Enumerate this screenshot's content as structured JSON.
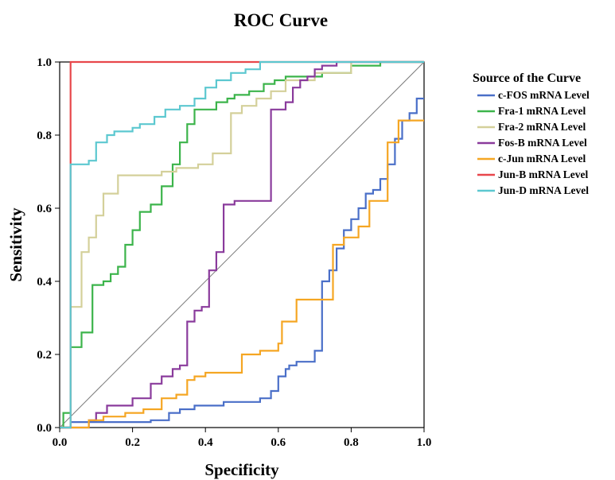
{
  "chart_data": {
    "type": "line",
    "title": "ROC Curve",
    "xlabel": "Specificity",
    "ylabel": "Sensitivity",
    "xlim": [
      0,
      1
    ],
    "ylim": [
      0,
      1
    ],
    "xticks": [
      "0.0",
      "0.2",
      "0.4",
      "0.6",
      "0.8",
      "1.0"
    ],
    "yticks": [
      "0.0",
      "0.2",
      "0.4",
      "0.6",
      "0.8",
      "1.0"
    ],
    "grid": false,
    "legend": {
      "title": "Source of the Curve",
      "position": "right"
    },
    "series": [
      {
        "name": "c-FOS mRNA Level",
        "color": "#4a6fc8",
        "x": [
          0,
          0.03,
          0.03,
          0.25,
          0.25,
          0.3,
          0.3,
          0.33,
          0.33,
          0.37,
          0.37,
          0.45,
          0.45,
          0.55,
          0.55,
          0.58,
          0.58,
          0.6,
          0.6,
          0.62,
          0.62,
          0.63,
          0.63,
          0.65,
          0.65,
          0.7,
          0.7,
          0.72,
          0.72,
          0.74,
          0.74,
          0.76,
          0.76,
          0.78,
          0.78,
          0.8,
          0.8,
          0.82,
          0.82,
          0.84,
          0.84,
          0.86,
          0.86,
          0.88,
          0.88,
          0.9,
          0.9,
          0.92,
          0.92,
          0.94,
          0.94,
          0.96,
          0.96,
          0.98,
          0.98,
          1.0
        ],
        "y": [
          0,
          0,
          0.015,
          0.015,
          0.02,
          0.02,
          0.04,
          0.04,
          0.05,
          0.05,
          0.06,
          0.06,
          0.07,
          0.07,
          0.08,
          0.08,
          0.1,
          0.1,
          0.14,
          0.14,
          0.16,
          0.16,
          0.17,
          0.17,
          0.18,
          0.18,
          0.21,
          0.21,
          0.4,
          0.4,
          0.43,
          0.43,
          0.49,
          0.49,
          0.54,
          0.54,
          0.57,
          0.57,
          0.6,
          0.6,
          0.64,
          0.64,
          0.65,
          0.65,
          0.68,
          0.68,
          0.72,
          0.72,
          0.79,
          0.79,
          0.84,
          0.84,
          0.86,
          0.86,
          0.9,
          0.9
        ]
      },
      {
        "name": "Fra-1 mRNA Level",
        "color": "#3cb44b",
        "x": [
          0,
          0.01,
          0.01,
          0.03,
          0.03,
          0.06,
          0.06,
          0.09,
          0.09,
          0.12,
          0.12,
          0.14,
          0.14,
          0.16,
          0.16,
          0.18,
          0.18,
          0.2,
          0.2,
          0.22,
          0.22,
          0.25,
          0.25,
          0.28,
          0.28,
          0.31,
          0.31,
          0.33,
          0.33,
          0.35,
          0.35,
          0.37,
          0.37,
          0.43,
          0.43,
          0.46,
          0.46,
          0.48,
          0.48,
          0.52,
          0.52,
          0.56,
          0.56,
          0.59,
          0.59,
          0.62,
          0.62,
          0.72,
          0.72,
          0.8,
          0.8,
          0.88,
          0.88,
          1.0
        ],
        "y": [
          0,
          0,
          0.04,
          0.04,
          0.22,
          0.22,
          0.26,
          0.26,
          0.39,
          0.39,
          0.4,
          0.4,
          0.42,
          0.42,
          0.44,
          0.44,
          0.5,
          0.5,
          0.54,
          0.54,
          0.59,
          0.59,
          0.61,
          0.61,
          0.66,
          0.66,
          0.72,
          0.72,
          0.78,
          0.78,
          0.83,
          0.83,
          0.87,
          0.87,
          0.89,
          0.89,
          0.9,
          0.9,
          0.91,
          0.91,
          0.92,
          0.92,
          0.94,
          0.94,
          0.95,
          0.95,
          0.96,
          0.96,
          0.97,
          0.97,
          0.99,
          0.99,
          1.0,
          1.0
        ]
      },
      {
        "name": "Fra-2 mRNA Level",
        "color": "#d4d09a",
        "x": [
          0,
          0.03,
          0.03,
          0.06,
          0.06,
          0.08,
          0.08,
          0.1,
          0.1,
          0.12,
          0.12,
          0.16,
          0.16,
          0.28,
          0.28,
          0.32,
          0.32,
          0.38,
          0.38,
          0.42,
          0.42,
          0.47,
          0.47,
          0.5,
          0.5,
          0.54,
          0.54,
          0.58,
          0.58,
          0.62,
          0.62,
          0.7,
          0.7,
          0.8,
          0.8,
          1.0
        ],
        "y": [
          0,
          0,
          0.33,
          0.33,
          0.48,
          0.48,
          0.52,
          0.52,
          0.58,
          0.58,
          0.64,
          0.64,
          0.69,
          0.69,
          0.7,
          0.7,
          0.71,
          0.71,
          0.72,
          0.72,
          0.75,
          0.75,
          0.86,
          0.86,
          0.88,
          0.88,
          0.9,
          0.9,
          0.92,
          0.92,
          0.95,
          0.95,
          0.97,
          0.97,
          1.0,
          1.0
        ]
      },
      {
        "name": "Fos-B mRNA Level",
        "color": "#8a3b9c",
        "x": [
          0,
          0.08,
          0.08,
          0.1,
          0.1,
          0.13,
          0.13,
          0.2,
          0.2,
          0.25,
          0.25,
          0.28,
          0.28,
          0.31,
          0.31,
          0.33,
          0.33,
          0.35,
          0.35,
          0.37,
          0.37,
          0.39,
          0.39,
          0.41,
          0.41,
          0.43,
          0.43,
          0.45,
          0.45,
          0.48,
          0.48,
          0.55,
          0.55,
          0.58,
          0.58,
          0.62,
          0.62,
          0.64,
          0.64,
          0.66,
          0.66,
          0.68,
          0.68,
          0.7,
          0.7,
          0.72,
          0.72,
          0.76,
          0.76,
          0.85,
          0.85,
          1.0
        ],
        "y": [
          0,
          0,
          0.02,
          0.02,
          0.04,
          0.04,
          0.06,
          0.06,
          0.08,
          0.08,
          0.12,
          0.12,
          0.14,
          0.14,
          0.16,
          0.16,
          0.17,
          0.17,
          0.29,
          0.29,
          0.32,
          0.32,
          0.33,
          0.33,
          0.43,
          0.43,
          0.48,
          0.48,
          0.61,
          0.61,
          0.62,
          0.62,
          0.62,
          0.62,
          0.87,
          0.87,
          0.89,
          0.89,
          0.93,
          0.93,
          0.95,
          0.95,
          0.96,
          0.96,
          0.98,
          0.98,
          0.99,
          0.99,
          1.0,
          1.0,
          1.0,
          1.0
        ]
      },
      {
        "name": "c-Jun mRNA Level",
        "color": "#f5a623",
        "x": [
          0,
          0.08,
          0.08,
          0.12,
          0.12,
          0.18,
          0.18,
          0.23,
          0.23,
          0.28,
          0.28,
          0.32,
          0.32,
          0.35,
          0.35,
          0.37,
          0.37,
          0.4,
          0.4,
          0.5,
          0.5,
          0.55,
          0.55,
          0.6,
          0.6,
          0.61,
          0.61,
          0.65,
          0.65,
          0.75,
          0.75,
          0.78,
          0.78,
          0.82,
          0.82,
          0.85,
          0.85,
          0.9,
          0.9,
          0.93,
          0.93,
          0.97,
          0.97,
          1.0
        ],
        "y": [
          0,
          0,
          0.02,
          0.02,
          0.03,
          0.03,
          0.04,
          0.04,
          0.05,
          0.05,
          0.08,
          0.08,
          0.09,
          0.09,
          0.13,
          0.13,
          0.14,
          0.14,
          0.15,
          0.15,
          0.2,
          0.2,
          0.21,
          0.21,
          0.23,
          0.23,
          0.29,
          0.29,
          0.35,
          0.35,
          0.5,
          0.5,
          0.52,
          0.52,
          0.55,
          0.55,
          0.62,
          0.62,
          0.78,
          0.78,
          0.84,
          0.84,
          0.84,
          0.84
        ]
      },
      {
        "name": "Jun-B mRNA Level",
        "color": "#e8474b",
        "x": [
          0,
          0.03,
          0.03,
          1.0
        ],
        "y": [
          0,
          0,
          1.0,
          1.0
        ]
      },
      {
        "name": "Jun-D mRNA Level",
        "color": "#5cc8d0",
        "x": [
          0,
          0.03,
          0.03,
          0.08,
          0.08,
          0.1,
          0.1,
          0.13,
          0.13,
          0.15,
          0.15,
          0.2,
          0.2,
          0.22,
          0.22,
          0.26,
          0.26,
          0.29,
          0.29,
          0.33,
          0.33,
          0.37,
          0.37,
          0.4,
          0.4,
          0.43,
          0.43,
          0.47,
          0.47,
          0.51,
          0.51,
          0.55,
          0.55,
          0.6,
          0.6,
          1.0
        ],
        "y": [
          0,
          0,
          0.72,
          0.72,
          0.73,
          0.73,
          0.78,
          0.78,
          0.8,
          0.8,
          0.81,
          0.81,
          0.82,
          0.82,
          0.83,
          0.83,
          0.85,
          0.85,
          0.87,
          0.87,
          0.88,
          0.88,
          0.9,
          0.9,
          0.93,
          0.93,
          0.95,
          0.95,
          0.97,
          0.97,
          0.98,
          0.98,
          1.0,
          1.0,
          1.0,
          1.0
        ]
      }
    ],
    "reference_line": {
      "color": "#7a7a7a"
    }
  }
}
